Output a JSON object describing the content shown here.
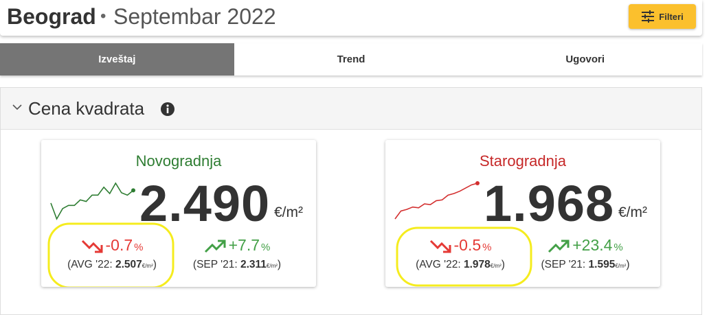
{
  "header": {
    "city": "Beograd",
    "separator": "•",
    "period": "Septembar 2022",
    "filter_button": "Filteri"
  },
  "tabs": [
    "Izveštaj",
    "Trend",
    "Ugovori"
  ],
  "section": {
    "title": "Cena kvadrata"
  },
  "cards": [
    {
      "title": "Novogradnja",
      "price": "2.490",
      "unit": "€/m²",
      "sparkline": [
        20,
        0,
        13,
        17,
        17,
        24,
        22,
        30,
        30,
        40,
        32,
        45,
        33,
        30,
        36
      ],
      "changes": [
        {
          "value": "-0.7",
          "unit": "%",
          "ref_label": "(AVG '22:",
          "ref_value": "2.507",
          "ref_unit": "€/m²",
          "ref_close": ")"
        },
        {
          "value": "+7.7",
          "unit": "%",
          "ref_label": "(SEP '21:",
          "ref_value": "2.311",
          "ref_unit": "€/m²",
          "ref_close": ")"
        }
      ]
    },
    {
      "title": "Starogradnja",
      "price": "1.968",
      "unit": "€/m²",
      "sparkline": [
        0,
        10,
        12,
        15,
        14,
        19,
        18,
        23,
        24,
        30,
        32,
        35,
        39,
        43,
        45
      ],
      "changes": [
        {
          "value": "-0.5",
          "unit": "%",
          "ref_label": "(AVG '22:",
          "ref_value": "1.978",
          "ref_unit": "€/m²",
          "ref_close": ")"
        },
        {
          "value": "+23.4",
          "unit": "%",
          "ref_label": "(SEP '21:",
          "ref_value": "1.595",
          "ref_unit": "€/m²",
          "ref_close": ")"
        }
      ]
    }
  ]
}
